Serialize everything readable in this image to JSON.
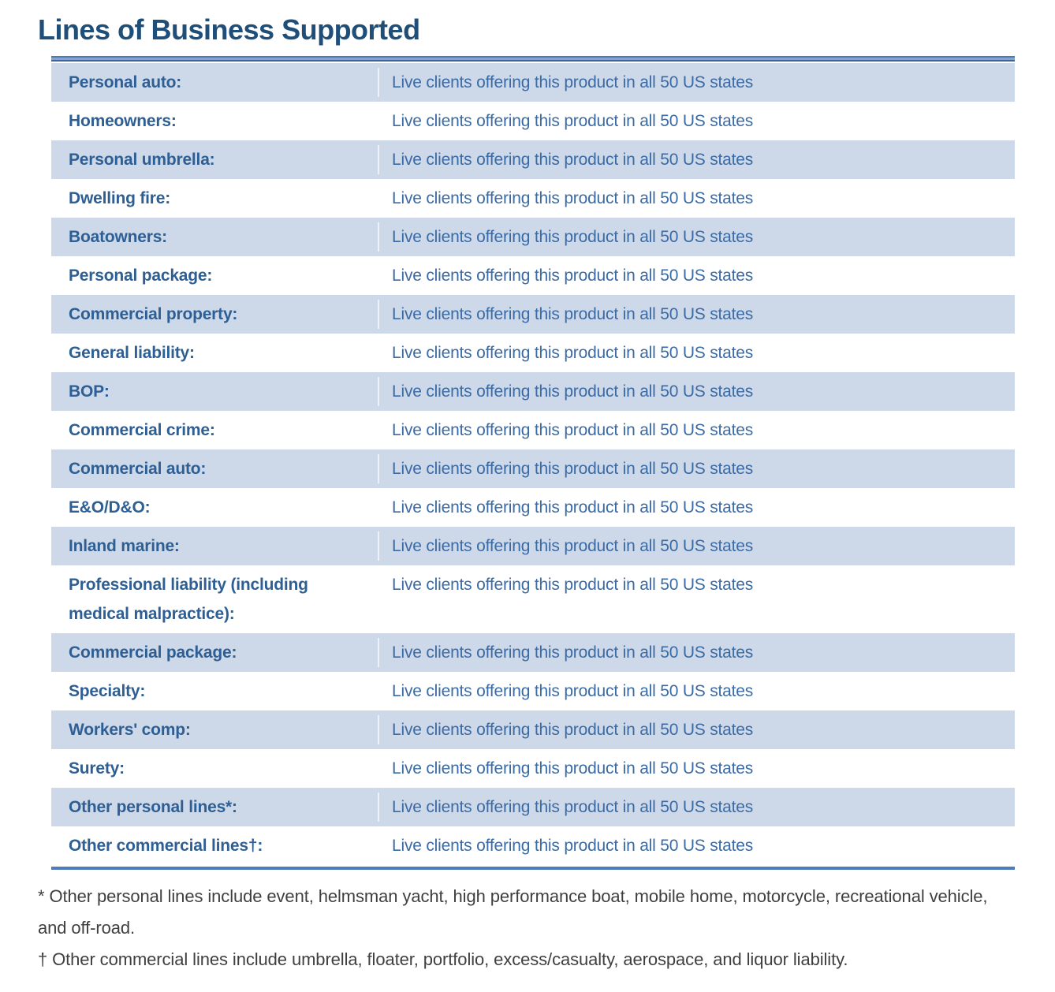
{
  "title": "Lines of Business Supported",
  "colors": {
    "title_blue": "#1F4E79",
    "label_blue": "#2E5F94",
    "value_blue": "#3B6BA5",
    "row_shade": "#CDD8E9",
    "border_blue": "#4D7CBA",
    "footnote_gray": "#3F3F3F"
  },
  "table": {
    "rows": [
      {
        "label": "Personal auto:",
        "value": "Live clients offering this product in all 50 US states"
      },
      {
        "label": "Homeowners:",
        "value": "Live clients offering this product in all 50 US states"
      },
      {
        "label": "Personal umbrella:",
        "value": "Live clients offering this product in all 50 US states"
      },
      {
        "label": "Dwelling fire:",
        "value": "Live clients offering this product in all 50 US states"
      },
      {
        "label": "Boatowners:",
        "value": "Live clients offering this product in all 50 US states"
      },
      {
        "label": "Personal package:",
        "value": "Live clients offering this product in all 50 US states"
      },
      {
        "label": "Commercial property:",
        "value": "Live clients offering this product in all 50 US states"
      },
      {
        "label": "General liability:",
        "value": "Live clients offering this product in all 50 US states"
      },
      {
        "label": "BOP:",
        "value": "Live clients offering this product in all 50 US states"
      },
      {
        "label": "Commercial crime:",
        "value": "Live clients offering this product in all 50 US states"
      },
      {
        "label": "Commercial auto:",
        "value": "Live clients offering this product in all 50 US states"
      },
      {
        "label": "E&O/D&O:",
        "value": "Live clients offering this product in all 50 US states"
      },
      {
        "label": "Inland marine:",
        "value": "Live clients offering this product in all 50 US states"
      },
      {
        "label": "Professional liability (including medical malpractice):",
        "value": "Live clients offering this product in all 50 US states"
      },
      {
        "label": "Commercial package:",
        "value": "Live clients offering this product in all 50 US states"
      },
      {
        "label": "Specialty:",
        "value": "Live clients offering this product in all 50 US states"
      },
      {
        "label": "Workers' comp:",
        "value": "Live clients offering this product in all 50 US states"
      },
      {
        "label": "Surety:",
        "value": "Live clients offering this product in all 50 US states"
      },
      {
        "label": "Other personal lines*:",
        "value": "Live clients offering this product in all 50 US states"
      },
      {
        "label": "Other commercial lines†:",
        "value": "Live clients offering this product in all 50 US states"
      }
    ]
  },
  "footnotes": [
    "* Other personal lines include event, helmsman yacht, high performance boat, mobile home, motorcycle, recreational vehicle, and off-road.",
    "† Other commercial lines include umbrella, floater, portfolio, excess/casualty, aerospace, and liquor liability."
  ]
}
